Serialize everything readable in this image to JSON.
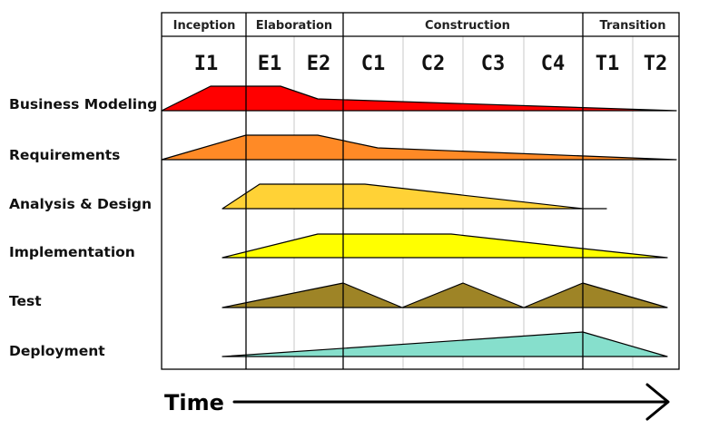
{
  "phases": [
    {
      "label": "Inception"
    },
    {
      "label": "Elaboration"
    },
    {
      "label": "Construction"
    },
    {
      "label": "Transition"
    }
  ],
  "iterations": [
    {
      "label": "I1"
    },
    {
      "label": "E1"
    },
    {
      "label": "E2"
    },
    {
      "label": "C1"
    },
    {
      "label": "C2"
    },
    {
      "label": "C3"
    },
    {
      "label": "C4"
    },
    {
      "label": "T1"
    },
    {
      "label": "T2"
    }
  ],
  "disciplines": [
    {
      "label": "Business Modeling",
      "color": "#ff0000"
    },
    {
      "label": "Requirements",
      "color": "#ff8a26"
    },
    {
      "label": "Analysis & Design",
      "color": "#ffd236"
    },
    {
      "label": "Implementation",
      "color": "#ffff00"
    },
    {
      "label": "Test",
      "color": "#9e8426"
    },
    {
      "label": "Deployment",
      "color": "#86dfcc"
    }
  ],
  "time_label": "Time"
}
